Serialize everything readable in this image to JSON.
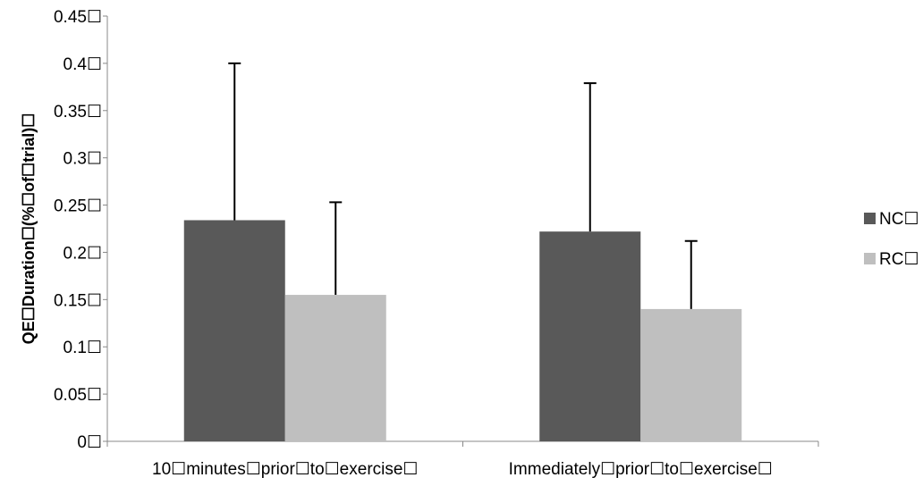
{
  "chart_data": {
    "type": "bar",
    "title": "",
    "xlabel": "",
    "ylabel": "QE☐Duration☐(%☐of☐trial)☐",
    "ylim": [
      0,
      0.45
    ],
    "yticks": [
      0,
      0.05,
      0.1,
      0.15,
      0.2,
      0.25,
      0.3,
      0.35,
      0.4,
      0.45
    ],
    "ytick_labels": [
      "0☐",
      "0.05☐",
      "0.1☐",
      "0.15☐",
      "0.2☐",
      "0.25☐",
      "0.3☐",
      "0.35☐",
      "0.4☐",
      "0.45☐"
    ],
    "categories": [
      "10☐minutes☐prior☐to☐exercise☐",
      "Immediately☐prior☐to☐exercise☐"
    ],
    "series": [
      {
        "name": "NC☐",
        "color": "#595959",
        "values": [
          0.234,
          0.222
        ],
        "error_upper": [
          0.4,
          0.379
        ]
      },
      {
        "name": "RC☐",
        "color": "#bfbfbf",
        "values": [
          0.155,
          0.14
        ],
        "error_upper": [
          0.253,
          0.212
        ]
      }
    ],
    "legend_position": "right",
    "grid": false
  }
}
